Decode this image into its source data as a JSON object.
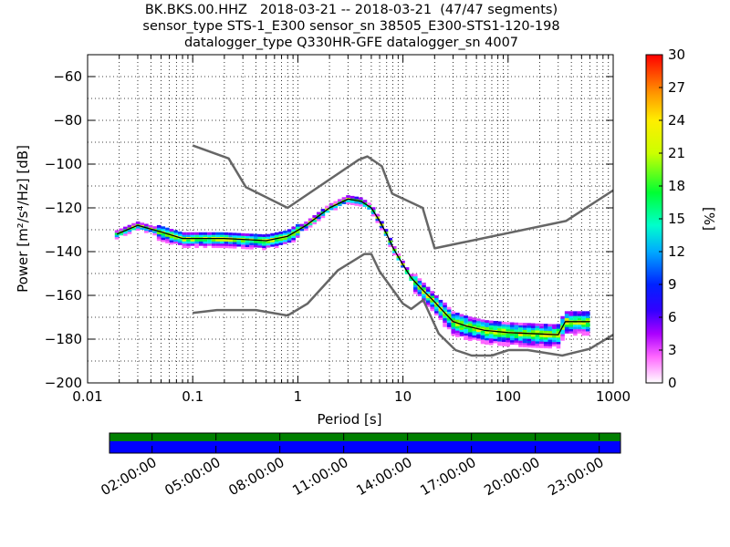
{
  "header": {
    "title_lines": [
      "BK.BKS.00.HHZ   2018-03-21 -- 2018-03-21  (47/47 segments)",
      "sensor_type STS-1_E300 sensor_sn 38505_E300-STS1-120-198",
      "datalogger_type Q330HR-GFE datalogger_sn 4007"
    ]
  },
  "chart_data": {
    "type": "heatmap",
    "xlabel": "Period [s]",
    "ylabel": "Power [m²/s⁴/Hz] [dB]",
    "xscale": "log",
    "xlim": [
      0.01,
      1000
    ],
    "ylim": [
      -200,
      -50
    ],
    "xticks": [
      "0.01",
      "0.1",
      "1",
      "10",
      "100",
      "1000"
    ],
    "yticks": [
      "−60",
      "−80",
      "−100",
      "−120",
      "−140",
      "−160",
      "−180",
      "−200"
    ],
    "grid": true,
    "colorbar": {
      "label": "[%]",
      "min": 0,
      "max": 30,
      "ticks": [
        "0",
        "3",
        "6",
        "9",
        "12",
        "15",
        "18",
        "21",
        "24",
        "27",
        "30"
      ]
    },
    "mode_line": {
      "x": [
        0.019,
        0.03,
        0.05,
        0.08,
        0.1,
        0.2,
        0.5,
        0.8,
        1.2,
        2,
        3,
        4,
        5,
        6,
        7,
        8,
        10,
        12,
        15,
        20,
        25,
        30,
        40,
        60,
        100,
        300,
        350,
        400,
        600
      ],
      "y": [
        -132,
        -128,
        -131,
        -134,
        -134,
        -134,
        -135,
        -133,
        -128,
        -120,
        -116,
        -117,
        -120,
        -126,
        -132,
        -138,
        -146,
        -152,
        -157,
        -163,
        -168,
        -172,
        -174,
        -176,
        -177,
        -178,
        -172,
        -172,
        -172
      ]
    },
    "noise_model_high": {
      "x": [
        0.1,
        0.22,
        0.32,
        0.8,
        3.8,
        4.6,
        6.3,
        7.9,
        15.4,
        20,
        354.8,
        1000
      ],
      "y": [
        -91.5,
        -97.4,
        -110.5,
        -120,
        -98,
        -96.5,
        -101,
        -113.5,
        -120,
        -138.5,
        -126,
        -112
      ]
    },
    "noise_model_low": {
      "x": [
        0.1,
        0.17,
        0.4,
        0.8,
        1.24,
        2.4,
        4.3,
        5,
        6,
        10,
        12,
        15.6,
        21.9,
        31.6,
        45,
        70,
        101,
        154,
        328,
        600,
        1000
      ],
      "y": [
        -168,
        -166.7,
        -166.7,
        -169.2,
        -163.7,
        -148.6,
        -141.1,
        -141.1,
        -149,
        -163.8,
        -166.2,
        -162.1,
        -177.5,
        -185,
        -187.5,
        -187.5,
        -185,
        -185,
        -187.5,
        -184.4,
        -178
      ]
    },
    "time_axis": {
      "tick_labels": [
        "02:00:00",
        "05:00:00",
        "08:00:00",
        "11:00:00",
        "14:00:00",
        "17:00:00",
        "20:00:00",
        "23:00:00"
      ],
      "colors": {
        "top": "#007f00",
        "bottom": "#0000ff"
      }
    }
  }
}
